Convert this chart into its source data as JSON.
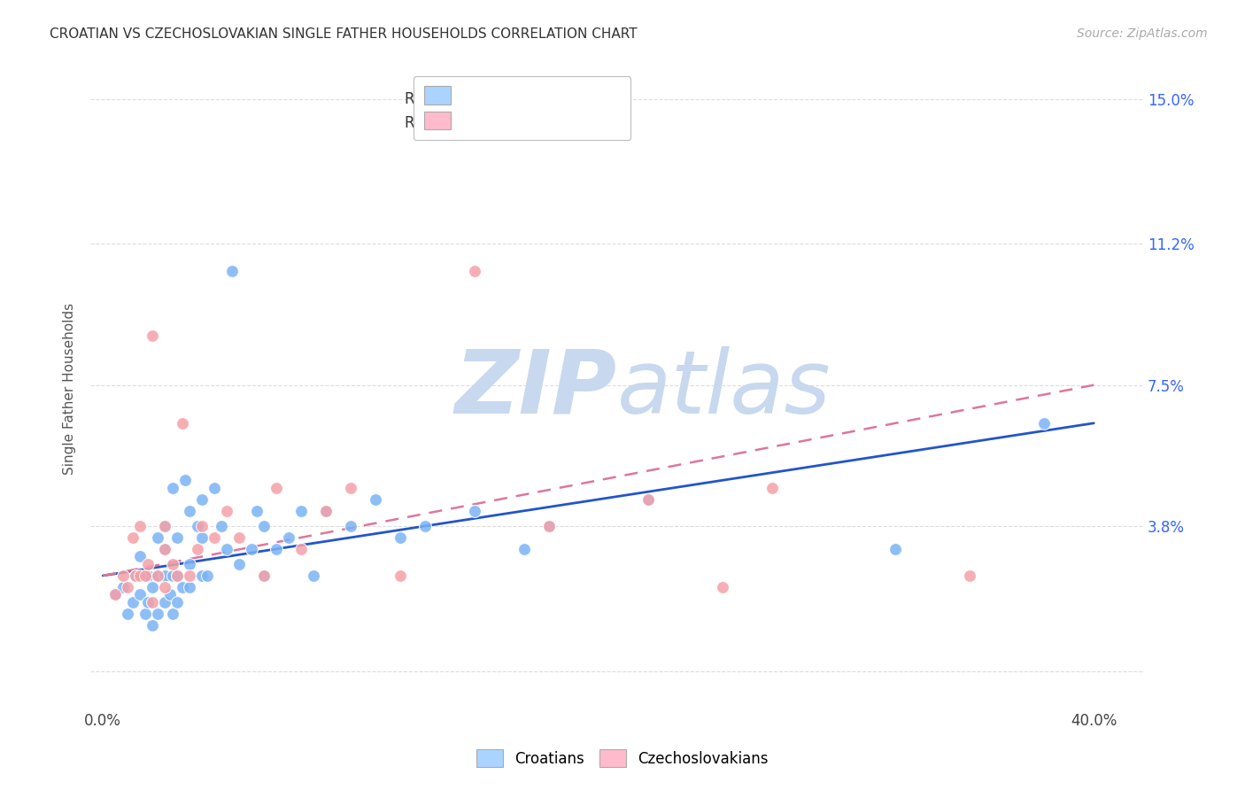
{
  "title": "CROATIAN VS CZECHOSLOVAKIAN SINGLE FATHER HOUSEHOLDS CORRELATION CHART",
  "source": "Source: ZipAtlas.com",
  "ylabel": "Single Father Households",
  "yticks": [
    0.0,
    0.038,
    0.075,
    0.112,
    0.15
  ],
  "ytick_labels": [
    "",
    "3.8%",
    "7.5%",
    "11.2%",
    "15.0%"
  ],
  "xticks": [
    0.0,
    0.1,
    0.2,
    0.3,
    0.4
  ],
  "xtick_labels": [
    "0.0%",
    "",
    "",
    "",
    "40.0%"
  ],
  "xlim": [
    -0.005,
    0.42
  ],
  "ylim": [
    -0.01,
    0.158
  ],
  "croatian_color": "#7ab3f5",
  "czechoslovakian_color": "#f5a0a8",
  "trendline_croatian_color": "#2255cc",
  "trendline_czechoslovakian_color": "#dd7799",
  "watermark_text": "ZIPatlas",
  "watermark_color": "#dde8f5",
  "background_color": "#ffffff",
  "grid_color": "#dddddd",
  "croatians_scatter_x": [
    0.005,
    0.008,
    0.01,
    0.012,
    0.013,
    0.015,
    0.015,
    0.017,
    0.018,
    0.018,
    0.02,
    0.02,
    0.022,
    0.022,
    0.022,
    0.025,
    0.025,
    0.025,
    0.025,
    0.027,
    0.028,
    0.028,
    0.028,
    0.03,
    0.03,
    0.03,
    0.032,
    0.033,
    0.035,
    0.035,
    0.035,
    0.038,
    0.04,
    0.04,
    0.04,
    0.042,
    0.045,
    0.048,
    0.05,
    0.052,
    0.055,
    0.06,
    0.062,
    0.065,
    0.065,
    0.07,
    0.075,
    0.08,
    0.085,
    0.09,
    0.1,
    0.11,
    0.12,
    0.13,
    0.15,
    0.17,
    0.18,
    0.22,
    0.32,
    0.38
  ],
  "croatians_scatter_y": [
    0.02,
    0.022,
    0.015,
    0.018,
    0.025,
    0.02,
    0.03,
    0.015,
    0.018,
    0.025,
    0.012,
    0.022,
    0.015,
    0.025,
    0.035,
    0.018,
    0.025,
    0.032,
    0.038,
    0.02,
    0.015,
    0.025,
    0.048,
    0.018,
    0.025,
    0.035,
    0.022,
    0.05,
    0.022,
    0.028,
    0.042,
    0.038,
    0.025,
    0.035,
    0.045,
    0.025,
    0.048,
    0.038,
    0.032,
    0.105,
    0.028,
    0.032,
    0.042,
    0.025,
    0.038,
    0.032,
    0.035,
    0.042,
    0.025,
    0.042,
    0.038,
    0.045,
    0.035,
    0.038,
    0.042,
    0.032,
    0.038,
    0.045,
    0.032,
    0.065
  ],
  "czechoslovakians_scatter_x": [
    0.005,
    0.008,
    0.01,
    0.012,
    0.013,
    0.015,
    0.015,
    0.017,
    0.018,
    0.02,
    0.02,
    0.022,
    0.025,
    0.025,
    0.025,
    0.028,
    0.03,
    0.032,
    0.035,
    0.038,
    0.04,
    0.045,
    0.05,
    0.055,
    0.065,
    0.07,
    0.08,
    0.09,
    0.1,
    0.12,
    0.15,
    0.18,
    0.22,
    0.25,
    0.27,
    0.35
  ],
  "czechoslovakians_scatter_y": [
    0.02,
    0.025,
    0.022,
    0.035,
    0.025,
    0.025,
    0.038,
    0.025,
    0.028,
    0.018,
    0.088,
    0.025,
    0.022,
    0.032,
    0.038,
    0.028,
    0.025,
    0.065,
    0.025,
    0.032,
    0.038,
    0.035,
    0.042,
    0.035,
    0.025,
    0.048,
    0.032,
    0.042,
    0.048,
    0.025,
    0.105,
    0.038,
    0.045,
    0.022,
    0.048,
    0.025
  ],
  "trendline_x_start": 0.0,
  "trendline_x_end": 0.4,
  "croatian_trend_y0": 0.025,
  "croatian_trend_y1": 0.065,
  "czech_trend_y0": 0.025,
  "czech_trend_y1": 0.075
}
